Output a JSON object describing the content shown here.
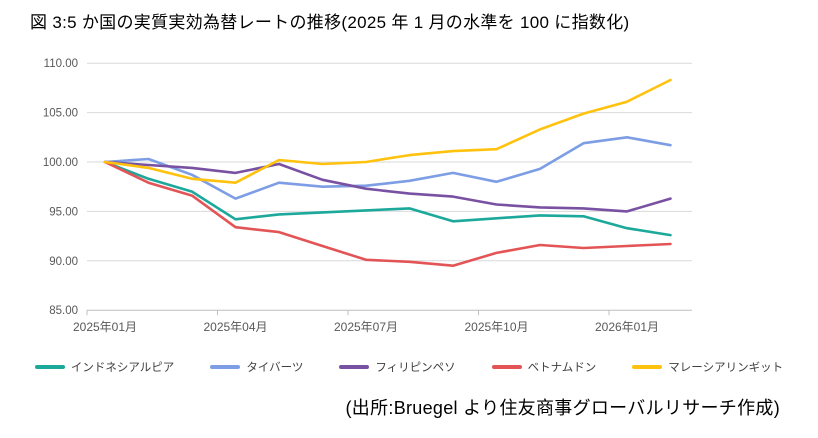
{
  "title": "図 3:5 か国の実質実効為替レートの推移(2025 年 1 月の水準を 100 に指数化)",
  "source_note": "(出所:Bruegel より住友商事グローバルリサーチ作成)",
  "colors": {
    "grid": "#D9D9D9",
    "axis": "#BFBFBF",
    "axis_label": "#595959",
    "legend_text": "#404040",
    "title_text": "#000000"
  },
  "chart_data": {
    "type": "line",
    "title": "図3:5か国の実質実効為替レートの推移(2025年1月の水準を100に指数化)",
    "xlabel": "",
    "ylabel": "",
    "ylim": [
      85,
      110
    ],
    "grid": true,
    "legend_position": "bottom",
    "x": [
      "2025-01",
      "2025-02",
      "2025-03",
      "2025-04",
      "2025-05",
      "2025-06",
      "2025-07",
      "2025-08",
      "2025-09",
      "2025-10",
      "2025-11",
      "2025-12",
      "2026-01",
      "2026-02"
    ],
    "x_tick_labels": [
      {
        "index": 0,
        "label": "2025年01月"
      },
      {
        "index": 3,
        "label": "2025年04月"
      },
      {
        "index": 6,
        "label": "2025年07月"
      },
      {
        "index": 9,
        "label": "2025年10月"
      },
      {
        "index": 12,
        "label": "2026年01月"
      }
    ],
    "y_ticks": [
      85,
      90,
      95,
      100,
      105,
      110
    ],
    "y_tick_labels": [
      "85.00",
      "90.00",
      "95.00",
      "100.00",
      "105.00",
      "110.00"
    ],
    "series": [
      {
        "name": "インドネシアルピア",
        "color": "#1CA99C",
        "values": [
          100,
          98.3,
          97.0,
          94.2,
          94.7,
          94.9,
          95.1,
          95.3,
          94.0,
          94.3,
          94.6,
          94.5,
          93.3,
          92.6
        ]
      },
      {
        "name": "タイバーツ",
        "color": "#7D9DE4",
        "values": [
          100,
          100.3,
          98.7,
          96.3,
          97.9,
          97.5,
          97.6,
          98.1,
          98.9,
          98.0,
          99.3,
          101.9,
          102.5,
          101.7
        ]
      },
      {
        "name": "フィリピンペソ",
        "color": "#7951A2",
        "values": [
          100,
          99.7,
          99.4,
          98.9,
          99.8,
          98.2,
          97.3,
          96.8,
          96.5,
          95.7,
          95.4,
          95.3,
          95.0,
          96.3
        ]
      },
      {
        "name": "ベトナムドン",
        "color": "#E35456",
        "values": [
          100,
          97.9,
          96.6,
          93.4,
          92.9,
          91.5,
          90.1,
          89.9,
          89.5,
          90.8,
          91.6,
          91.3,
          91.5,
          91.7
        ]
      },
      {
        "name": "マレーシアリンギット",
        "color": "#FFC20E",
        "values": [
          100,
          99.4,
          98.3,
          97.9,
          100.2,
          99.8,
          100.0,
          100.7,
          101.1,
          101.3,
          103.3,
          104.9,
          106.1,
          108.3
        ]
      }
    ]
  }
}
